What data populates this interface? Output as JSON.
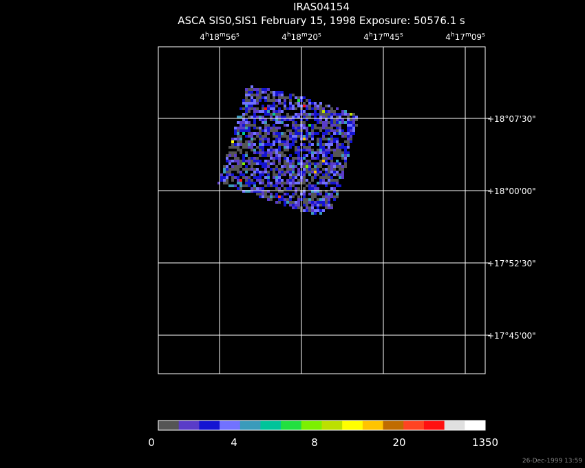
{
  "header": {
    "title": "IRAS04154",
    "subtitle": "ASCA SIS0,SIS1 February 15, 1998 Exposure: 50576.1 s"
  },
  "ra_labels": [
    [
      "4",
      "h",
      "18",
      "m",
      "56",
      "s"
    ],
    [
      "4",
      "h",
      "18",
      "m",
      "20",
      "s"
    ],
    [
      "4",
      "h",
      "17",
      "m",
      "45",
      "s"
    ],
    [
      "4",
      "h",
      "17",
      "m",
      "09",
      "s"
    ]
  ],
  "dec_labels": [
    "+18°07'30\"",
    "+18°00'00\"",
    "+17°52'30\"",
    "+17°45'00\""
  ],
  "colorbar": {
    "colors": [
      "#555555",
      "#5a3cc8",
      "#1414d2",
      "#7272ff",
      "#3a9bbb",
      "#00c49a",
      "#22e040",
      "#7cf000",
      "#bce000",
      "#ffff00",
      "#ffc400",
      "#c06c00",
      "#ff4422",
      "#ff1010",
      "#e0e0e0",
      "#ffffff"
    ],
    "labels": [
      "0",
      "4",
      "8",
      "20",
      "1350"
    ]
  },
  "footer": {
    "timestamp": "26-Dec-1999 13:59"
  }
}
